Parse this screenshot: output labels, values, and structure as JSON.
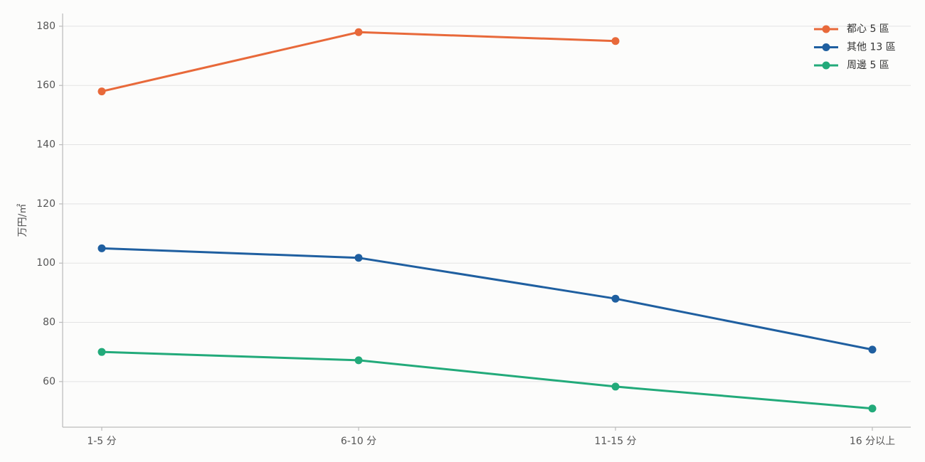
{
  "chart_data": {
    "type": "line",
    "y_label": "万円/㎡",
    "categories": [
      "1-5 分",
      "6-10 分",
      "11-15 分",
      "16 分以上"
    ],
    "series": [
      {
        "name": "都心 5 區",
        "color": "#e8693a",
        "values": [
          158,
          178,
          175,
          null
        ]
      },
      {
        "name": "其他 13 區",
        "color": "#1f5fa0",
        "values": [
          105,
          101.8,
          88,
          70.8
        ]
      },
      {
        "name": "周邊 5 區",
        "color": "#22aa7a",
        "values": [
          70,
          67.2,
          58.3,
          50.9
        ]
      }
    ],
    "ylim": [
      44.6,
      184.3
    ],
    "yticks": [
      60,
      80,
      100,
      120,
      140,
      160,
      180
    ],
    "grid": true,
    "legend": "upper-right"
  }
}
